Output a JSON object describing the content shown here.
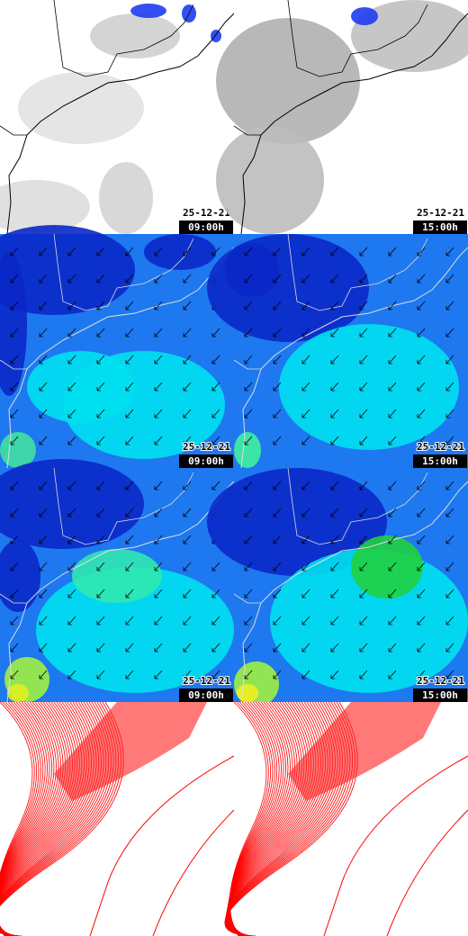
{
  "panels": [
    {
      "date": "25-12-21",
      "time": "09:00h"
    },
    {
      "date": "25-12-21",
      "time": "15:00h"
    },
    {
      "date": "25-12-21",
      "time": "09:00h"
    },
    {
      "date": "25-12-21",
      "time": "15:00h"
    },
    {
      "date": "25-12-21",
      "time": "09:00h"
    },
    {
      "date": "25-12-21",
      "time": "15:00h"
    }
  ]
}
